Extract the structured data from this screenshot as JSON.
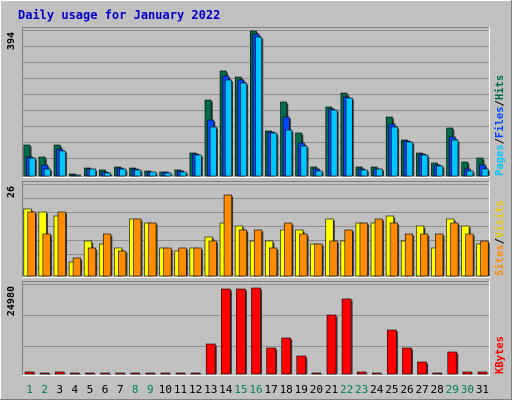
{
  "chart_data": {
    "title": "Daily usage for January 2022",
    "days": [
      "1",
      "2",
      "3",
      "4",
      "5",
      "6",
      "7",
      "8",
      "9",
      "10",
      "11",
      "12",
      "13",
      "14",
      "15",
      "16",
      "17",
      "18",
      "19",
      "20",
      "21",
      "22",
      "23",
      "24",
      "25",
      "26",
      "27",
      "28",
      "29",
      "30",
      "31"
    ],
    "weekend_days": [
      "1",
      "2",
      "8",
      "9",
      "15",
      "16",
      "22",
      "23",
      "29",
      "30"
    ],
    "colors": {
      "hits": "#006b4d",
      "files": "#0047ff",
      "pages": "#00c6ff",
      "visits": "#ffff00",
      "sites": "#ff8c00",
      "kbytes": "#ff0000",
      "title": "#0000cc",
      "weekend": "#00805c",
      "weekday": "#000000"
    },
    "panels": [
      {
        "name": "top",
        "type": "bar",
        "ymax_label": "394",
        "ymax": 394,
        "series": [
          {
            "name": "Hits",
            "values": [
              83,
              50,
              84,
              6,
              22,
              16,
              24,
              22,
              14,
              12,
              16,
              62,
              205,
              283,
              268,
              391,
              122,
              200,
              116,
              24,
              185,
              224,
              24,
              24,
              159,
              98,
              62,
              36,
              129,
              38,
              49
            ]
          },
          {
            "name": "Files",
            "values": [
              52,
              30,
              74,
              4,
              20,
              10,
              22,
              18,
              12,
              10,
              14,
              60,
              152,
              270,
              260,
              384,
              118,
              160,
              90,
              20,
              180,
              212,
              20,
              20,
              140,
              94,
              60,
              30,
              104,
              20,
              30
            ]
          },
          {
            "name": "Pages",
            "values": [
              48,
              20,
              68,
              3,
              20,
              8,
              20,
              16,
              10,
              8,
              12,
              58,
              132,
              260,
              250,
              375,
              116,
              124,
              82,
              14,
              178,
              210,
              16,
              18,
              132,
              92,
              58,
              26,
              96,
              14,
              18
            ]
          }
        ],
        "legend": [
          "Pages",
          "/",
          "Files",
          "/",
          "Hits"
        ]
      },
      {
        "name": "middle",
        "type": "bar",
        "ymax_label": "26",
        "ymax": 26,
        "series": [
          {
            "name": "Visits",
            "values": [
              19,
              18,
              17,
              4,
              10,
              9,
              8,
              16,
              15,
              8,
              7,
              8,
              11,
              15,
              14,
              10,
              10,
              13,
              13,
              9,
              16,
              10,
              15,
              15,
              17,
              10,
              14,
              8,
              16,
              14,
              9
            ]
          },
          {
            "name": "Sites",
            "values": [
              18,
              12,
              18,
              5,
              8,
              12,
              7,
              16,
              15,
              8,
              8,
              8,
              10,
              23,
              13,
              13,
              8,
              15,
              12,
              9,
              10,
              13,
              15,
              16,
              15,
              12,
              12,
              12,
              15,
              12,
              10
            ]
          }
        ],
        "legend": [
          "Sites",
          "/",
          "Visits"
        ]
      },
      {
        "name": "bottom",
        "type": "bar",
        "ymax_label": "24980",
        "ymax": 24980,
        "series": [
          {
            "name": "KBytes",
            "values": [
              600,
              100,
              600,
              100,
              100,
              100,
              100,
              100,
              100,
              100,
              100,
              100,
              8300,
              23500,
              23500,
              24000,
              7200,
              10000,
              5000,
              100,
              16500,
              20800,
              500,
              400,
              12300,
              7300,
              3300,
              200,
              6200,
              500,
              500
            ]
          }
        ],
        "legend": [
          "KBytes"
        ]
      }
    ]
  }
}
